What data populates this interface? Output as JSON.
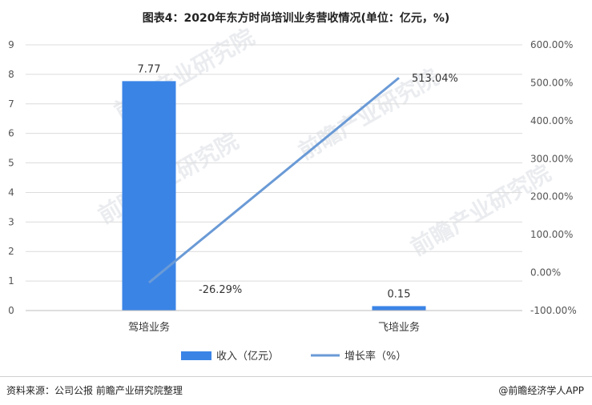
{
  "title": "图表4：2020年东方时尚培训业务营收情况(单位：亿元，%)",
  "source": "资料来源：公司公报 前瞻产业研究院整理",
  "brand": "@前瞻经济学人APP",
  "watermark": "前瞻产业研究院",
  "colors": {
    "bar": "#3a84e6",
    "line": "#6a9ad6",
    "grid": "#dcdcdc"
  },
  "chart_data": {
    "type": "bar",
    "categories": [
      "驾培业务",
      "飞培业务"
    ],
    "series": [
      {
        "name": "收入（亿元）",
        "type": "bar",
        "axis": "left",
        "values": [
          7.77,
          0.15
        ],
        "labels": [
          "7.77",
          "0.15"
        ]
      },
      {
        "name": "增长率（%）",
        "type": "line",
        "axis": "right",
        "values": [
          -26.29,
          513.04
        ],
        "labels": [
          "-26.29%",
          "513.04%"
        ]
      }
    ],
    "y_left": {
      "ylim": [
        0,
        9
      ],
      "ticks": [
        "0",
        "1",
        "2",
        "3",
        "4",
        "5",
        "6",
        "7",
        "8",
        "9"
      ]
    },
    "y_right": {
      "ylim": [
        -100,
        600
      ],
      "ticks": [
        "-100.00%",
        "0.00%",
        "100.00%",
        "200.00%",
        "300.00%",
        "400.00%",
        "500.00%",
        "600.00%"
      ]
    },
    "grid": true,
    "legend_position": "bottom"
  }
}
